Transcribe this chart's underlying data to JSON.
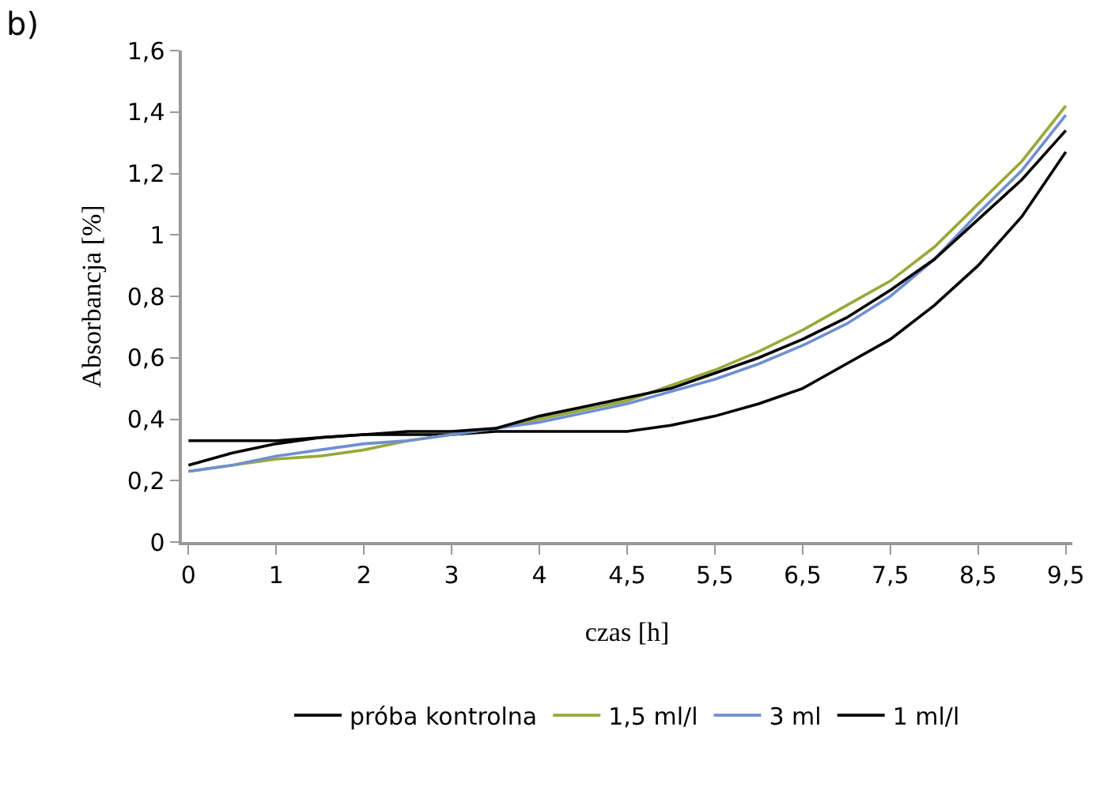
{
  "chart_data": {
    "type": "line",
    "annotations": [
      "b)"
    ],
    "xlabel": "czas [h]",
    "ylabel": "Absorbancja [%]",
    "categories": [
      "0",
      null,
      "1",
      null,
      "2",
      null,
      "3",
      null,
      "4",
      null,
      "4,5",
      null,
      "5,5",
      null,
      "6,5",
      null,
      "7,5",
      null,
      "8,5",
      null,
      "9,5"
    ],
    "ylim": [
      0,
      1.6
    ],
    "yticks": [
      0,
      {
        "value": 0.2,
        "label": "0,2"
      },
      {
        "value": 0.4,
        "label": "0,4"
      },
      {
        "value": 0.6,
        "label": "0,6"
      },
      {
        "value": 0.8,
        "label": "0,8"
      },
      1,
      {
        "value": 1.2,
        "label": "1,2"
      },
      {
        "value": 1.4,
        "label": "1,4"
      },
      {
        "value": 1.6,
        "label": "1,6"
      }
    ],
    "legend": "bottom",
    "marker": "none",
    "line_style": "solid",
    "series": [
      {
        "name": "próba kontrolna",
        "color": "#000000",
        "values": [
          0.33,
          0.33,
          0.33,
          0.34,
          0.35,
          0.35,
          0.35,
          0.36,
          0.36,
          0.36,
          0.36,
          0.38,
          0.41,
          0.45,
          0.5,
          0.58,
          0.66,
          0.77,
          0.9,
          1.06,
          1.27
        ]
      },
      {
        "name": "1,5 ml/l",
        "color": "#98a83a",
        "values": [
          0.23,
          0.25,
          0.27,
          0.28,
          0.3,
          0.33,
          0.35,
          0.37,
          0.4,
          0.43,
          0.46,
          0.51,
          0.56,
          0.62,
          0.69,
          0.77,
          0.85,
          0.96,
          1.1,
          1.24,
          1.42
        ]
      },
      {
        "name": "3 ml",
        "color": "#6f8fd0",
        "values": [
          0.23,
          0.25,
          0.28,
          0.3,
          0.32,
          0.33,
          0.35,
          0.37,
          0.39,
          0.42,
          0.45,
          0.49,
          0.53,
          0.58,
          0.64,
          0.71,
          0.8,
          0.92,
          1.07,
          1.21,
          1.39
        ]
      },
      {
        "name": "1 ml/l",
        "color": "#000000",
        "values": [
          0.25,
          0.29,
          0.32,
          0.34,
          0.35,
          0.36,
          0.36,
          0.37,
          0.41,
          0.44,
          0.47,
          0.5,
          0.55,
          0.6,
          0.66,
          0.73,
          0.82,
          0.92,
          1.05,
          1.18,
          1.34
        ]
      }
    ]
  }
}
